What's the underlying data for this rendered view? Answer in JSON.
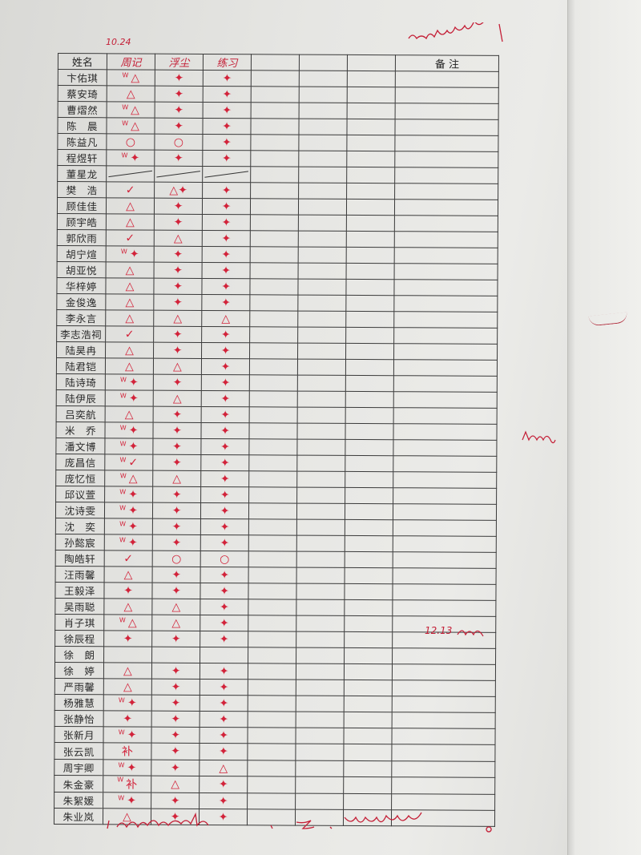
{
  "header": {
    "date_note": "10.24",
    "name_col": "姓名",
    "remark_col": "备 注",
    "handwritten_cols": [
      "周记",
      "浮尘",
      "练习"
    ]
  },
  "marks_legend": {
    "tri": "△",
    "star": "✦",
    "check": "✓",
    "circle": "○",
    "line": "",
    "none": "",
    "text": "补"
  },
  "rows": [
    {
      "name": "卞佑琪",
      "m": [
        "W tri",
        "star",
        "star"
      ]
    },
    {
      "name": "蔡安琦",
      "m": [
        "tri",
        "star",
        "star"
      ]
    },
    {
      "name": "曹熠然",
      "m": [
        "W tri",
        "star",
        "star"
      ]
    },
    {
      "name": "陈　晨",
      "m": [
        "W tri",
        "star",
        "star"
      ]
    },
    {
      "name": "陈益凡",
      "m": [
        "circle",
        "circle",
        "star"
      ]
    },
    {
      "name": "程煜轩",
      "m": [
        "W star",
        "star",
        "star"
      ]
    },
    {
      "name": "董星龙",
      "m": [
        "line",
        "line",
        "line"
      ]
    },
    {
      "name": "樊　浩",
      "m": [
        "check",
        "tri star",
        "star"
      ]
    },
    {
      "name": "顾佳佳",
      "m": [
        "tri",
        "star",
        "star"
      ]
    },
    {
      "name": "顾宇皓",
      "m": [
        "tri",
        "star",
        "star"
      ]
    },
    {
      "name": "郭欣雨",
      "m": [
        "check",
        "tri",
        "star"
      ]
    },
    {
      "name": "胡宁煊",
      "m": [
        "W star",
        "star",
        "star"
      ]
    },
    {
      "name": "胡亚悦",
      "m": [
        "tri",
        "star",
        "star"
      ]
    },
    {
      "name": "华梓婷",
      "m": [
        "tri",
        "star",
        "star"
      ]
    },
    {
      "name": "金俊逸",
      "m": [
        "tri",
        "star",
        "star"
      ]
    },
    {
      "name": "李永言",
      "m": [
        "tri",
        "tri",
        "tri"
      ]
    },
    {
      "name": "李志浩祠",
      "m": [
        "check",
        "star",
        "star"
      ]
    },
    {
      "name": "陆昊冉",
      "m": [
        "tri",
        "star",
        "star"
      ]
    },
    {
      "name": "陆君铠",
      "m": [
        "tri",
        "tri",
        "star"
      ]
    },
    {
      "name": "陆诗琦",
      "m": [
        "W star",
        "star",
        "star"
      ]
    },
    {
      "name": "陆伊辰",
      "m": [
        "W star",
        "tri",
        "star"
      ]
    },
    {
      "name": "吕奕航",
      "m": [
        "tri",
        "star",
        "star"
      ]
    },
    {
      "name": "米　乔",
      "m": [
        "W star",
        "star",
        "star"
      ]
    },
    {
      "name": "潘文博",
      "m": [
        "W star",
        "star",
        "star"
      ]
    },
    {
      "name": "庞昌信",
      "m": [
        "W check",
        "star",
        "star"
      ]
    },
    {
      "name": "庞忆恒",
      "m": [
        "W tri",
        "tri",
        "star"
      ]
    },
    {
      "name": "邱议萱",
      "m": [
        "W star",
        "star",
        "star"
      ]
    },
    {
      "name": "沈诗雯",
      "m": [
        "W star",
        "star",
        "star"
      ]
    },
    {
      "name": "沈　奕",
      "m": [
        "W star",
        "star",
        "star"
      ]
    },
    {
      "name": "孙懿宸",
      "m": [
        "W star",
        "star",
        "star"
      ]
    },
    {
      "name": "陶皓轩",
      "m": [
        "check",
        "circle",
        "circle"
      ]
    },
    {
      "name": "汪雨馨",
      "m": [
        "tri",
        "star",
        "star"
      ]
    },
    {
      "name": "王毅泽",
      "m": [
        "star",
        "star",
        "star"
      ]
    },
    {
      "name": "吴雨聪",
      "m": [
        "tri",
        "tri",
        "star"
      ]
    },
    {
      "name": "肖子琪",
      "m": [
        "W tri",
        "tri",
        "star"
      ]
    },
    {
      "name": "徐辰程",
      "m": [
        "star",
        "star",
        "star"
      ]
    },
    {
      "name": "徐　朗",
      "m": [
        "none",
        "none",
        "none"
      ]
    },
    {
      "name": "徐　婷",
      "m": [
        "tri",
        "star",
        "star"
      ]
    },
    {
      "name": "严雨馨",
      "m": [
        "tri",
        "star",
        "star"
      ]
    },
    {
      "name": "杨雅慧",
      "m": [
        "W star",
        "star",
        "star"
      ]
    },
    {
      "name": "张静怡",
      "m": [
        "star",
        "star",
        "star"
      ]
    },
    {
      "name": "张新月",
      "m": [
        "W star",
        "star",
        "star"
      ]
    },
    {
      "name": "张云凯",
      "m": [
        "text",
        "star",
        "star"
      ]
    },
    {
      "name": "周宇卿",
      "m": [
        "W star",
        "star",
        "tri"
      ]
    },
    {
      "name": "朱金豪",
      "m": [
        "W text",
        "tri",
        "star"
      ]
    },
    {
      "name": "朱絮媛",
      "m": [
        "W star",
        "star",
        "star"
      ]
    },
    {
      "name": "朱业岚",
      "m": [
        "tri",
        "star",
        "star"
      ]
    }
  ],
  "side_notes": {
    "remark_note": "12.13"
  },
  "colors": {
    "ink_red": "#c41e36",
    "grid": "#3a3a3a"
  }
}
